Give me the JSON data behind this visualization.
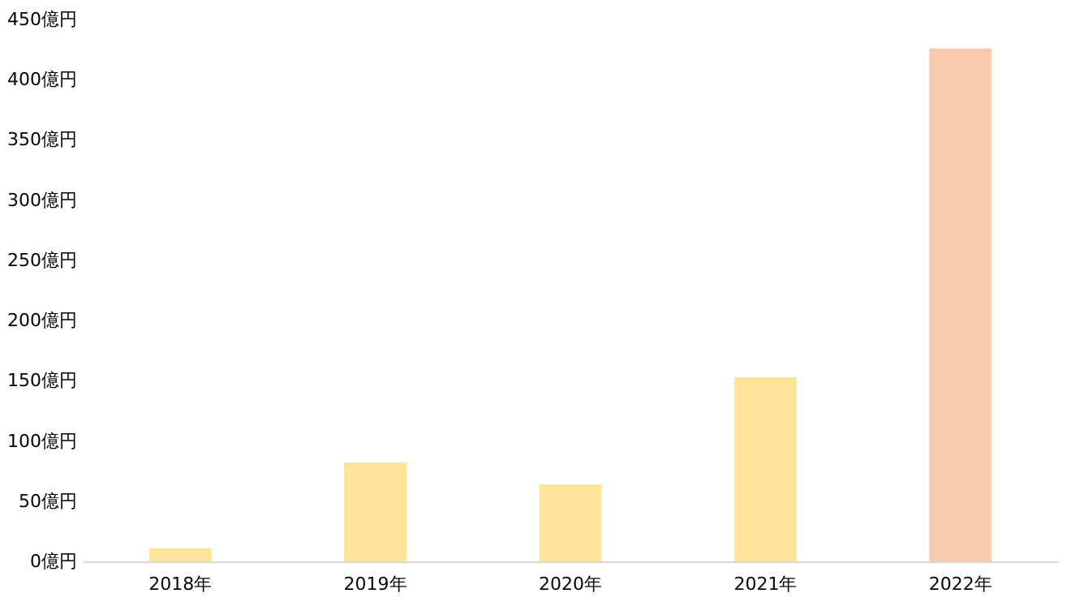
{
  "chart_data": {
    "type": "bar",
    "categories": [
      "2018年",
      "2019年",
      "2020年",
      "2021年",
      "2022年"
    ],
    "values": [
      11,
      82,
      64,
      153,
      426
    ],
    "colors": [
      "#fee599",
      "#fee599",
      "#fee599",
      "#fee599",
      "#f8cbad"
    ],
    "ylim": [
      0,
      450
    ],
    "yticks": [
      {
        "value": 0,
        "label": "0億円"
      },
      {
        "value": 50,
        "label": "50億円"
      },
      {
        "value": 100,
        "label": "100億円"
      },
      {
        "value": 150,
        "label": "150億円"
      },
      {
        "value": 200,
        "label": "200億円"
      },
      {
        "value": 250,
        "label": "250億円"
      },
      {
        "value": 300,
        "label": "300億円"
      },
      {
        "value": 350,
        "label": "350億円"
      },
      {
        "value": 400,
        "label": "400億円"
      },
      {
        "value": 450,
        "label": "450億円"
      }
    ],
    "grid": false
  }
}
